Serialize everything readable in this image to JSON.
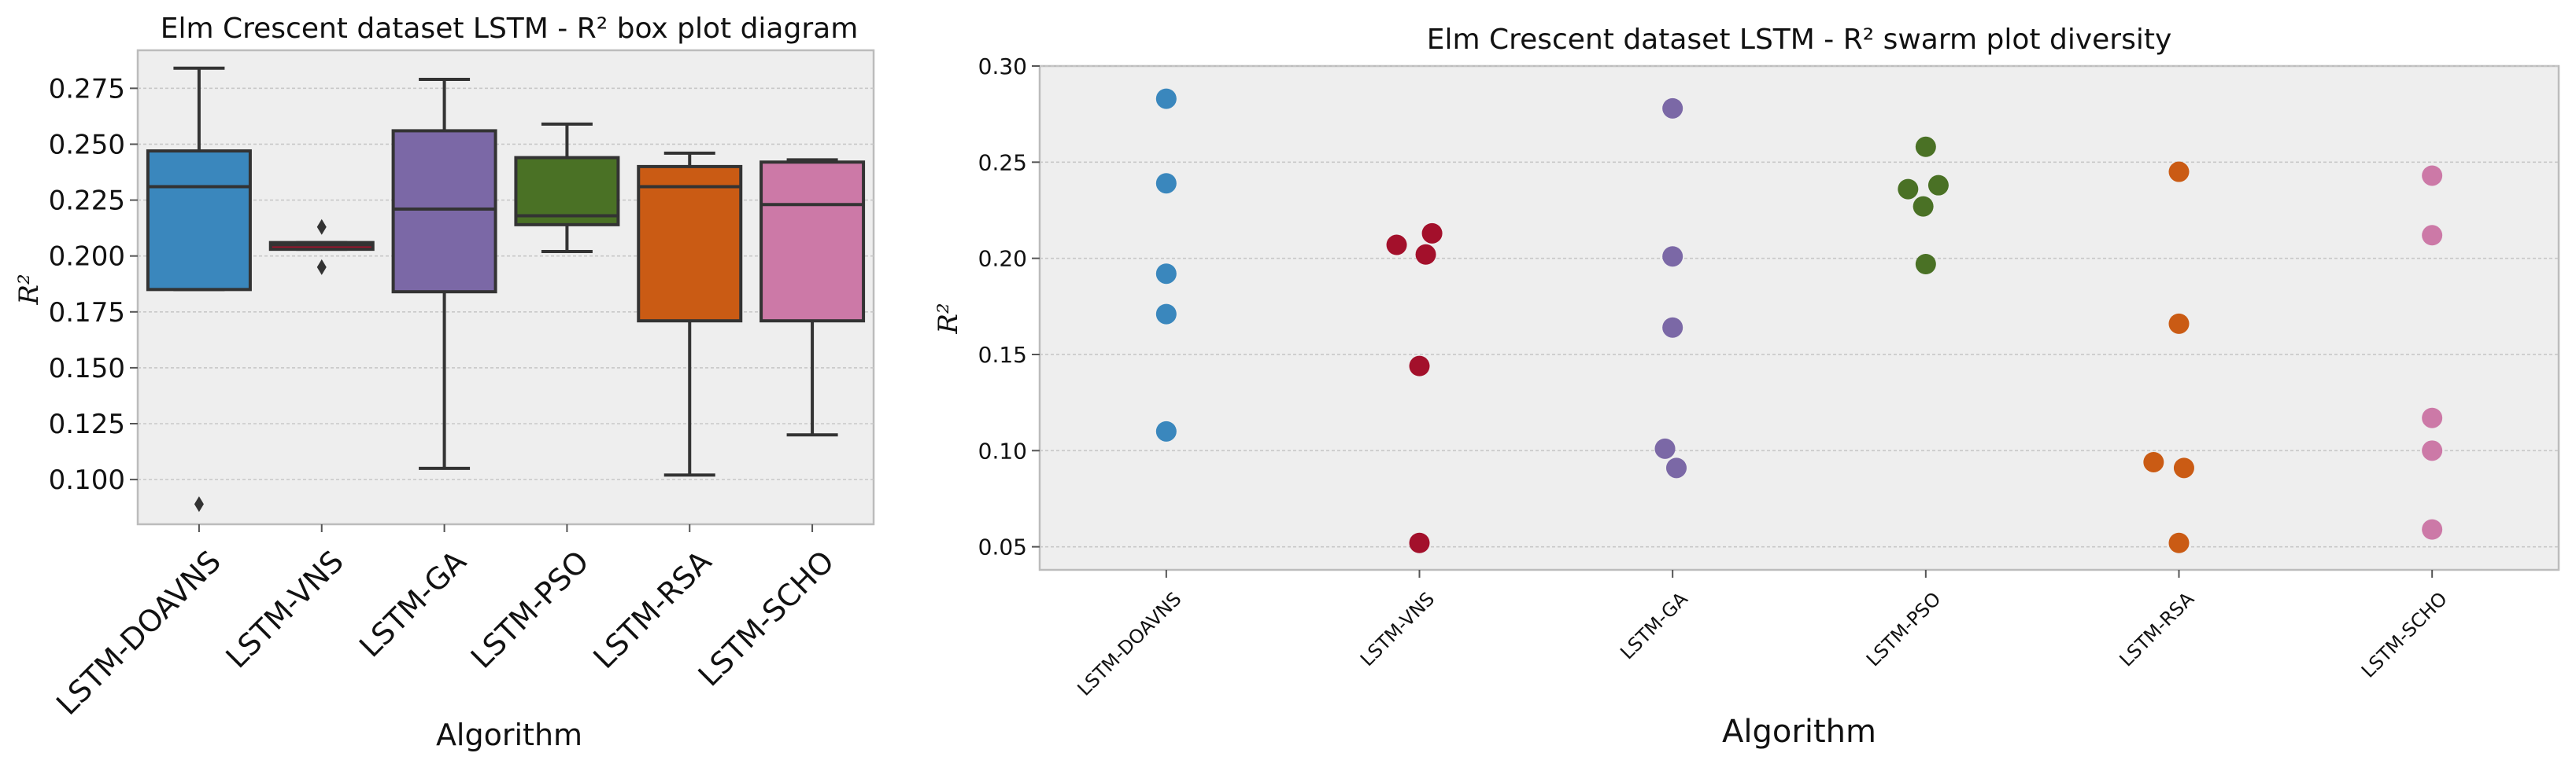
{
  "chart_data": [
    {
      "type": "box",
      "title": "Elm Crescent dataset LSTM -  R² box plot diagram",
      "xlabel": "Algorithm",
      "ylabel": "R²",
      "categories": [
        "LSTM-DOAVNS",
        "LSTM-VNS",
        "LSTM-GA",
        "LSTM-PSO",
        "LSTM-RSA",
        "LSTM-SCHO"
      ],
      "colors": [
        "#3a87bd",
        "#a3102b",
        "#7b68a6",
        "#4a7125",
        "#ca5b14",
        "#cc79a7"
      ],
      "ylim": [
        0.08,
        0.292
      ],
      "yticks": [
        "0.100",
        "0.125",
        "0.150",
        "0.175",
        "0.200",
        "0.225",
        "0.250",
        "0.275"
      ],
      "grid": true,
      "boxes": [
        {
          "name": "LSTM-DOAVNS",
          "whisker_low": 0.185,
          "q1": 0.185,
          "median": 0.231,
          "q3": 0.247,
          "whisker_high": 0.284,
          "outliers": [
            0.089
          ]
        },
        {
          "name": "LSTM-VNS",
          "whisker_low": 0.203,
          "q1": 0.203,
          "median": 0.205,
          "q3": 0.206,
          "whisker_high": 0.206,
          "outliers": [
            0.213,
            0.195
          ]
        },
        {
          "name": "LSTM-GA",
          "whisker_low": 0.105,
          "q1": 0.184,
          "median": 0.221,
          "q3": 0.256,
          "whisker_high": 0.279,
          "outliers": []
        },
        {
          "name": "LSTM-PSO",
          "whisker_low": 0.202,
          "q1": 0.214,
          "median": 0.218,
          "q3": 0.244,
          "whisker_high": 0.259,
          "outliers": []
        },
        {
          "name": "LSTM-RSA",
          "whisker_low": 0.102,
          "q1": 0.171,
          "median": 0.231,
          "q3": 0.24,
          "whisker_high": 0.246,
          "outliers": []
        },
        {
          "name": "LSTM-SCHO",
          "whisker_low": 0.12,
          "q1": 0.171,
          "median": 0.223,
          "q3": 0.242,
          "whisker_high": 0.243,
          "outliers": []
        }
      ]
    },
    {
      "type": "scatter",
      "title": "Elm Crescent dataset LSTM -  R² swarm plot diversity",
      "xlabel": "Algorithm",
      "ylabel": "R²",
      "categories": [
        "LSTM-DOAVNS",
        "LSTM-VNS",
        "LSTM-GA",
        "LSTM-PSO",
        "LSTM-RSA",
        "LSTM-SCHO"
      ],
      "colors": [
        "#3a87bd",
        "#a3102b",
        "#7b68a6",
        "#4a7125",
        "#ca5b14",
        "#cc79a7"
      ],
      "ylim": [
        0.038,
        0.3
      ],
      "yticks": [
        "0.05",
        "0.10",
        "0.15",
        "0.20",
        "0.25",
        "0.30"
      ],
      "grid": true,
      "series": [
        {
          "name": "LSTM-DOAVNS",
          "values": [
            0.283,
            0.239,
            0.192,
            0.171,
            0.11
          ],
          "offsets": [
            0,
            0,
            0,
            0,
            0
          ]
        },
        {
          "name": "LSTM-VNS",
          "values": [
            0.207,
            0.213,
            0.202,
            0.144,
            0.052
          ],
          "offsets": [
            -0.09,
            0.05,
            0.025,
            0,
            0
          ]
        },
        {
          "name": "LSTM-GA",
          "values": [
            0.278,
            0.201,
            0.164,
            0.101,
            0.091
          ],
          "offsets": [
            0,
            0,
            0,
            -0.03,
            0.015
          ]
        },
        {
          "name": "LSTM-PSO",
          "values": [
            0.258,
            0.238,
            0.236,
            0.227,
            0.197
          ],
          "offsets": [
            0,
            0.05,
            -0.07,
            -0.01,
            0
          ]
        },
        {
          "name": "LSTM-RSA",
          "values": [
            0.245,
            0.166,
            0.094,
            0.091,
            0.052
          ],
          "offsets": [
            0,
            0,
            -0.1,
            0.02,
            0
          ]
        },
        {
          "name": "LSTM-SCHO",
          "values": [
            0.243,
            0.212,
            0.117,
            0.1,
            0.059
          ],
          "offsets": [
            0,
            0,
            0,
            0,
            0
          ]
        }
      ]
    }
  ]
}
